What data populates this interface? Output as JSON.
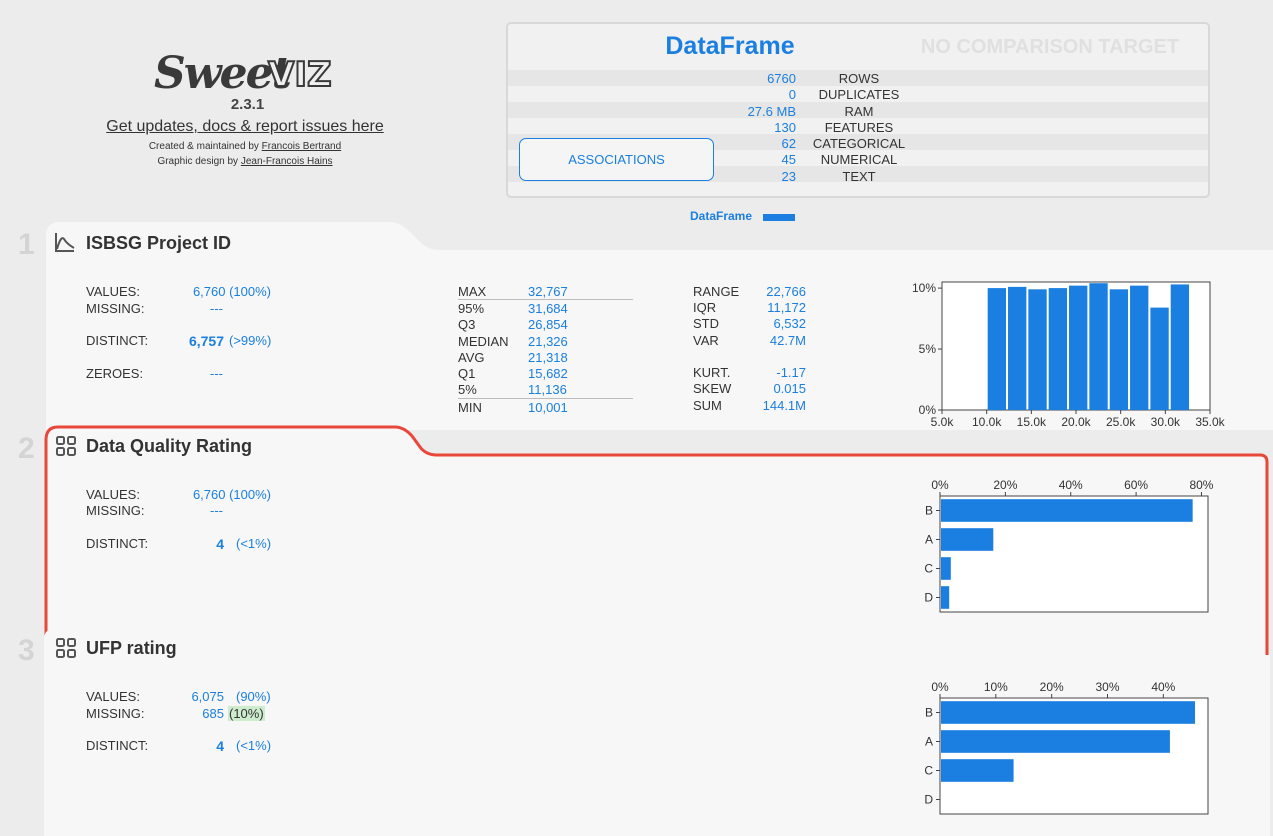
{
  "header": {
    "logo_text": "SweetVIZ",
    "version": "2.3.1",
    "updates_link": "Get updates, docs & report issues here",
    "created_prefix": "Created & maintained by ",
    "created_name": "Francois Bertrand",
    "design_prefix": "Graphic design by ",
    "design_name": "Jean-Francois Hains"
  },
  "summary": {
    "title": "DataFrame",
    "no_comparison": "NO COMPARISON TARGET",
    "rows": [
      {
        "value": "6760",
        "label": "ROWS"
      },
      {
        "value": "0",
        "label": "DUPLICATES"
      },
      {
        "value": "27.6 MB",
        "label": "RAM"
      },
      {
        "value": "130",
        "label": "FEATURES"
      },
      {
        "value": "62",
        "label": "CATEGORICAL"
      },
      {
        "value": "45",
        "label": "NUMERICAL"
      },
      {
        "value": "23",
        "label": "TEXT"
      }
    ],
    "associations_button": "ASSOCIATIONS",
    "legend_label": "DataFrame"
  },
  "colors": {
    "accent": "#1a7fe0",
    "selected_border": "#e8473a",
    "missing_highlight": "#cdebcd"
  },
  "features": [
    {
      "number": "1",
      "icon": "numeric-chart-icon",
      "title": "ISBSG Project ID",
      "values_label": "VALUES:",
      "values_value": "6,760 (100%)",
      "missing_label": "MISSING:",
      "missing_value": "---",
      "distinct_label": "DISTINCT:",
      "distinct_value": "6,757",
      "distinct_pct": "(>99%)",
      "zeroes_label": "ZEROES:",
      "zeroes_value": "---",
      "quantiles": [
        {
          "label": "MAX",
          "value": "32,767"
        },
        {
          "label": "95%",
          "value": "31,684"
        },
        {
          "label": "Q3",
          "value": "26,854"
        },
        {
          "label": "MEDIAN",
          "value": "21,326"
        },
        {
          "label": "AVG",
          "value": "21,318"
        },
        {
          "label": "Q1",
          "value": "15,682"
        },
        {
          "label": "5%",
          "value": "11,136"
        },
        {
          "label": "MIN",
          "value": "10,001"
        }
      ],
      "stats": [
        {
          "label": "RANGE",
          "value": "22,766"
        },
        {
          "label": "IQR",
          "value": "11,172"
        },
        {
          "label": "STD",
          "value": "6,532"
        },
        {
          "label": "VAR",
          "value": "42.7M"
        },
        {
          "label": "KURT.",
          "value": "-1.17"
        },
        {
          "label": "SKEW",
          "value": "0.015"
        },
        {
          "label": "SUM",
          "value": "144.1M"
        }
      ]
    },
    {
      "number": "2",
      "icon": "categorical-grid-icon",
      "title": "Data Quality Rating",
      "values_label": "VALUES:",
      "values_value": "6,760 (100%)",
      "missing_label": "MISSING:",
      "missing_value": "---",
      "distinct_label": "DISTINCT:",
      "distinct_value": "4",
      "distinct_pct": "(<1%)"
    },
    {
      "number": "3",
      "icon": "categorical-grid-icon",
      "title": "UFP rating",
      "values_label": "VALUES:",
      "values_count": "6,075",
      "values_pct": "(90%)",
      "missing_label": "MISSING:",
      "missing_count": "685",
      "missing_pct": "(10%)",
      "distinct_label": "DISTINCT:",
      "distinct_value": "4",
      "distinct_pct": "(<1%)"
    }
  ],
  "chart_data": [
    {
      "type": "bar",
      "title": "",
      "x_ticks": [
        "5.0k",
        "10.0k",
        "15.0k",
        "20.0k",
        "25.0k",
        "30.0k",
        "35.0k"
      ],
      "xlim": [
        5000,
        35000
      ],
      "y_ticks": [
        "0%",
        "5%",
        "10%"
      ],
      "ylim": [
        0,
        0.105
      ],
      "bins": [
        {
          "start": 10001,
          "end": 12278,
          "value": 0.1
        },
        {
          "start": 12278,
          "end": 14554,
          "value": 0.101
        },
        {
          "start": 14554,
          "end": 16831,
          "value": 0.099
        },
        {
          "start": 16831,
          "end": 19108,
          "value": 0.1
        },
        {
          "start": 19108,
          "end": 21384,
          "value": 0.102
        },
        {
          "start": 21384,
          "end": 23661,
          "value": 0.104
        },
        {
          "start": 23661,
          "end": 25937,
          "value": 0.099
        },
        {
          "start": 25937,
          "end": 28214,
          "value": 0.102
        },
        {
          "start": 28214,
          "end": 30491,
          "value": 0.084
        },
        {
          "start": 30491,
          "end": 32767,
          "value": 0.103
        }
      ]
    },
    {
      "type": "bar",
      "orientation": "horizontal",
      "categories": [
        "B",
        "A",
        "C",
        "D"
      ],
      "values": [
        77,
        16,
        3,
        2.5
      ],
      "x_ticks": [
        "0%",
        "20%",
        "40%",
        "60%",
        "80%"
      ],
      "xlim": [
        0,
        82
      ]
    },
    {
      "type": "bar",
      "orientation": "horizontal",
      "categories": [
        "B",
        "A",
        "C",
        "D"
      ],
      "values": [
        45.5,
        41,
        13,
        0
      ],
      "x_ticks": [
        "0%",
        "10%",
        "20%",
        "30%",
        "40%"
      ],
      "xlim": [
        0,
        48
      ]
    }
  ]
}
